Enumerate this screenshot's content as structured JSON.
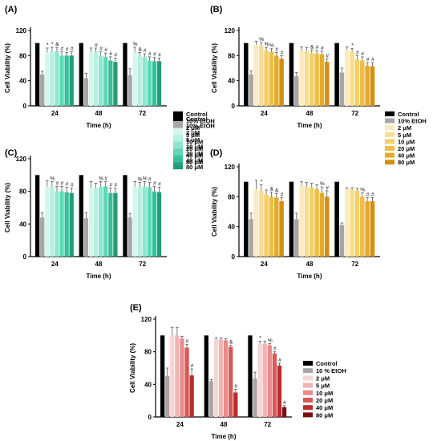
{
  "figure": {
    "x_title": "Time (h)",
    "y_title": "Cell Viability (%)",
    "time_points": [
      "24",
      "48",
      "72"
    ]
  },
  "chart_data": [
    {
      "type": "bar",
      "panel": "(A)",
      "categories": [
        "24",
        "48",
        "72"
      ],
      "ylim": [
        0,
        120
      ],
      "yticks": [
        0,
        40,
        80,
        120
      ],
      "grid": false,
      "legend_position": "right",
      "xlabel": "Time (h)",
      "ylabel": "Cell Viability (%)",
      "series": [
        {
          "name": "Control",
          "color": "#000000",
          "values": [
            100,
            100,
            100
          ],
          "err": [
            0,
            0,
            0
          ],
          "sig": [
            "",
            "",
            ""
          ]
        },
        {
          "name": "10% EtOH",
          "color": "#a6a6a6",
          "values": [
            50,
            44,
            49
          ],
          "err": [
            5,
            8,
            10
          ],
          "sig": [
            "",
            "",
            ""
          ]
        },
        {
          "name": "2 μM",
          "color": "#d3f7ec",
          "values": [
            85,
            85,
            86
          ],
          "err": [
            7,
            7,
            7
          ],
          "sig": [
            "*",
            "",
            "%"
          ]
        },
        {
          "name": "5 μM",
          "color": "#b5f0e0",
          "values": [
            87,
            87,
            80
          ],
          "err": [
            6,
            5,
            5
          ],
          "sig": [
            "*",
            "#",
            "&"
          ]
        },
        {
          "name": "10 μM",
          "color": "#8ee6ce",
          "values": [
            87,
            80,
            78
          ],
          "err": [
            6,
            6,
            5
          ],
          "sig": [
            "&",
            "#",
            "#"
          ]
        },
        {
          "name": "20 μM",
          "color": "#5fd7b4",
          "values": [
            80,
            78,
            72
          ],
          "err": [
            6,
            6,
            6
          ],
          "sig": [
            "#",
            "#",
            "#"
          ]
        },
        {
          "name": "40 μM",
          "color": "#35c096",
          "values": [
            80,
            72,
            71
          ],
          "err": [
            5,
            6,
            6
          ],
          "sig": [
            "#",
            "#",
            "#"
          ]
        },
        {
          "name": "80 μM",
          "color": "#1f9e79",
          "values": [
            80,
            70,
            71
          ],
          "err": [
            6,
            6,
            5
          ],
          "sig": [
            "#",
            "#",
            "#"
          ]
        }
      ]
    },
    {
      "type": "bar",
      "panel": "(B)",
      "categories": [
        "24",
        "48",
        "72"
      ],
      "ylim": [
        0,
        120
      ],
      "yticks": [
        0,
        40,
        80,
        120
      ],
      "grid": false,
      "legend_position": "right",
      "xlabel": "Time (h)",
      "ylabel": "Cell Viability (%)",
      "series": [
        {
          "name": "Control",
          "color": "#000000",
          "values": [
            100,
            100,
            100
          ],
          "err": [
            0,
            0,
            0
          ],
          "sig": [
            "",
            "",
            ""
          ]
        },
        {
          "name": "10% EtOH",
          "color": "#a6a6a6",
          "values": [
            50,
            47,
            53
          ],
          "err": [
            6,
            6,
            7
          ],
          "sig": [
            "",
            "",
            ""
          ]
        },
        {
          "name": "2 μM",
          "color": "#fbeabc",
          "values": [
            97,
            89,
            89
          ],
          "err": [
            6,
            5,
            5
          ],
          "sig": [
            "",
            "",
            ""
          ]
        },
        {
          "name": "5 μM",
          "color": "#f7dd92",
          "values": [
            96,
            88,
            86
          ],
          "err": [
            5,
            5,
            5
          ],
          "sig": [
            "%",
            "",
            "*"
          ]
        },
        {
          "name": "10 μM",
          "color": "#f2cf6a",
          "values": [
            88,
            84,
            74
          ],
          "err": [
            5,
            5,
            6
          ],
          "sig": [
            "%",
            "&",
            "#"
          ]
        },
        {
          "name": "20 μM",
          "color": "#ecbf45",
          "values": [
            86,
            83,
            72
          ],
          "err": [
            5,
            5,
            6
          ],
          "sig": [
            "%",
            "#",
            "#"
          ]
        },
        {
          "name": "40 μM",
          "color": "#e4ab2b",
          "values": [
            80,
            82,
            64
          ],
          "err": [
            5,
            5,
            5
          ],
          "sig": [
            "#",
            "#",
            "#"
          ]
        },
        {
          "name": "80 μM",
          "color": "#d28f14",
          "values": [
            75,
            70,
            63
          ],
          "err": [
            5,
            5,
            6
          ],
          "sig": [
            "#",
            "#",
            "#"
          ]
        }
      ]
    },
    {
      "type": "bar",
      "panel": "(C)",
      "categories": [
        "24",
        "48",
        "72"
      ],
      "ylim": [
        0,
        120
      ],
      "yticks": [
        0,
        40,
        80,
        120
      ],
      "grid": false,
      "legend_position": "right",
      "xlabel": "Time (h)",
      "ylabel": "Cell Viability (%)",
      "series": [
        {
          "name": "Control",
          "color": "#000000",
          "values": [
            100,
            100,
            100
          ],
          "err": [
            0,
            0,
            0
          ],
          "sig": [
            "",
            "",
            ""
          ]
        },
        {
          "name": "10% EtOH",
          "color": "#a6a6a6",
          "values": [
            48,
            47,
            48
          ],
          "err": [
            6,
            7,
            5
          ],
          "sig": [
            "",
            "",
            ""
          ]
        },
        {
          "name": "2 μM",
          "color": "#d3f7ec",
          "values": [
            86,
            85,
            86
          ],
          "err": [
            7,
            7,
            6
          ],
          "sig": [
            "",
            "",
            ""
          ]
        },
        {
          "name": "5 μM",
          "color": "#b5f0e0",
          "values": [
            86,
            84,
            85
          ],
          "err": [
            6,
            6,
            6
          ],
          "sig": [
            "%",
            "",
            "%"
          ]
        },
        {
          "name": "10 μM",
          "color": "#8ee6ce",
          "values": [
            80,
            86,
            86
          ],
          "err": [
            6,
            6,
            6
          ],
          "sig": [
            "#",
            "%",
            "%"
          ]
        },
        {
          "name": "20 μM",
          "color": "#5fd7b4",
          "values": [
            80,
            86,
            85
          ],
          "err": [
            6,
            6,
            6
          ],
          "sig": [
            "#",
            "#",
            "#"
          ]
        },
        {
          "name": "40 μM",
          "color": "#35c096",
          "values": [
            79,
            78,
            80
          ],
          "err": [
            6,
            6,
            6
          ],
          "sig": [
            "#",
            "#",
            "#"
          ]
        },
        {
          "name": "80 μM",
          "color": "#1f9e79",
          "values": [
            78,
            78,
            79
          ],
          "err": [
            6,
            6,
            6
          ],
          "sig": [
            "#",
            "#",
            "#"
          ]
        }
      ]
    },
    {
      "type": "bar",
      "panel": "(D)",
      "categories": [
        "24",
        "48",
        "72"
      ],
      "ylim": [
        0,
        120
      ],
      "yticks": [
        0,
        40,
        80,
        120
      ],
      "grid": false,
      "legend_position": "none",
      "xlabel": "Time (h)",
      "ylabel": "Cell Viability (%)",
      "series": [
        {
          "name": "Control",
          "color": "#000000",
          "values": [
            100,
            100,
            100
          ],
          "err": [
            0,
            0,
            0
          ],
          "sig": [
            "",
            "",
            ""
          ]
        },
        {
          "name": "10% EtOH",
          "color": "#a6a6a6",
          "values": [
            50,
            50,
            42
          ],
          "err": [
            8,
            8,
            3
          ],
          "sig": [
            "",
            "",
            ""
          ]
        },
        {
          "name": "2 μM",
          "color": "#fbeabc",
          "values": [
            90,
            95,
            90
          ],
          "err": [
            12,
            5,
            2
          ],
          "sig": [
            "",
            "",
            ""
          ]
        },
        {
          "name": "5 μM",
          "color": "#f7dd92",
          "values": [
            88,
            94,
            90
          ],
          "err": [
            8,
            5,
            2
          ],
          "sig": [
            "*",
            "",
            ""
          ]
        },
        {
          "name": "10 μM",
          "color": "#f2cf6a",
          "values": [
            83,
            92,
            88
          ],
          "err": [
            6,
            6,
            3
          ],
          "sig": [
            "",
            "",
            ""
          ]
        },
        {
          "name": "20 μM",
          "color": "#ecbf45",
          "values": [
            80,
            90,
            80
          ],
          "err": [
            6,
            6,
            5
          ],
          "sig": [
            "&",
            "",
            "%"
          ]
        },
        {
          "name": "40 μM",
          "color": "#e4ab2b",
          "values": [
            79,
            85,
            74
          ],
          "err": [
            5,
            8,
            5
          ],
          "sig": [
            "&",
            "%",
            "#"
          ]
        },
        {
          "name": "80 μM",
          "color": "#d28f14",
          "values": [
            74,
            80,
            74
          ],
          "err": [
            5,
            8,
            5
          ],
          "sig": [
            "#",
            "#",
            "#"
          ]
        }
      ]
    },
    {
      "type": "bar",
      "panel": "(E)",
      "categories": [
        "24",
        "48",
        "72"
      ],
      "ylim": [
        0,
        120
      ],
      "yticks": [
        0,
        40,
        80,
        120
      ],
      "grid": false,
      "legend_position": "right",
      "xlabel": "Time (h)",
      "ylabel": "Cell Viability (%)",
      "series": [
        {
          "name": "Control",
          "color": "#000000",
          "values": [
            100,
            100,
            100
          ],
          "err": [
            0,
            0,
            0
          ],
          "sig": [
            "",
            "",
            ""
          ]
        },
        {
          "name": "10 % EtOH",
          "color": "#a6a6a6",
          "values": [
            50,
            44,
            47
          ],
          "err": [
            10,
            2,
            8
          ],
          "sig": [
            "",
            "",
            ""
          ]
        },
        {
          "name": "2 μM",
          "color": "#f9d4d4",
          "values": [
            100,
            95,
            90
          ],
          "err": [
            10,
            2,
            3
          ],
          "sig": [
            "",
            "",
            "*"
          ]
        },
        {
          "name": "5 μM",
          "color": "#f3b3b3",
          "values": [
            100,
            95,
            90
          ],
          "err": [
            10,
            2,
            3
          ],
          "sig": [
            "",
            "",
            ""
          ]
        },
        {
          "name": "10 μM",
          "color": "#ea8a8a",
          "values": [
            96,
            94,
            88
          ],
          "err": [
            3,
            2,
            2
          ],
          "sig": [
            "",
            "",
            "%"
          ]
        },
        {
          "name": "20 μM",
          "color": "#d95757",
          "values": [
            85,
            86,
            78
          ],
          "err": [
            4,
            2,
            2
          ],
          "sig": [
            "#",
            "&",
            "#"
          ]
        },
        {
          "name": "40 μM",
          "color": "#b92d2d",
          "values": [
            51,
            30,
            63
          ],
          "err": [
            8,
            4,
            3
          ],
          "sig": [
            "#",
            "#",
            "#"
          ]
        },
        {
          "name": "80 μM",
          "color": "#7a1010",
          "values": [
            0,
            0,
            12
          ],
          "err": [
            0,
            0,
            2
          ],
          "sig": [
            "",
            "",
            "#"
          ]
        }
      ]
    }
  ]
}
